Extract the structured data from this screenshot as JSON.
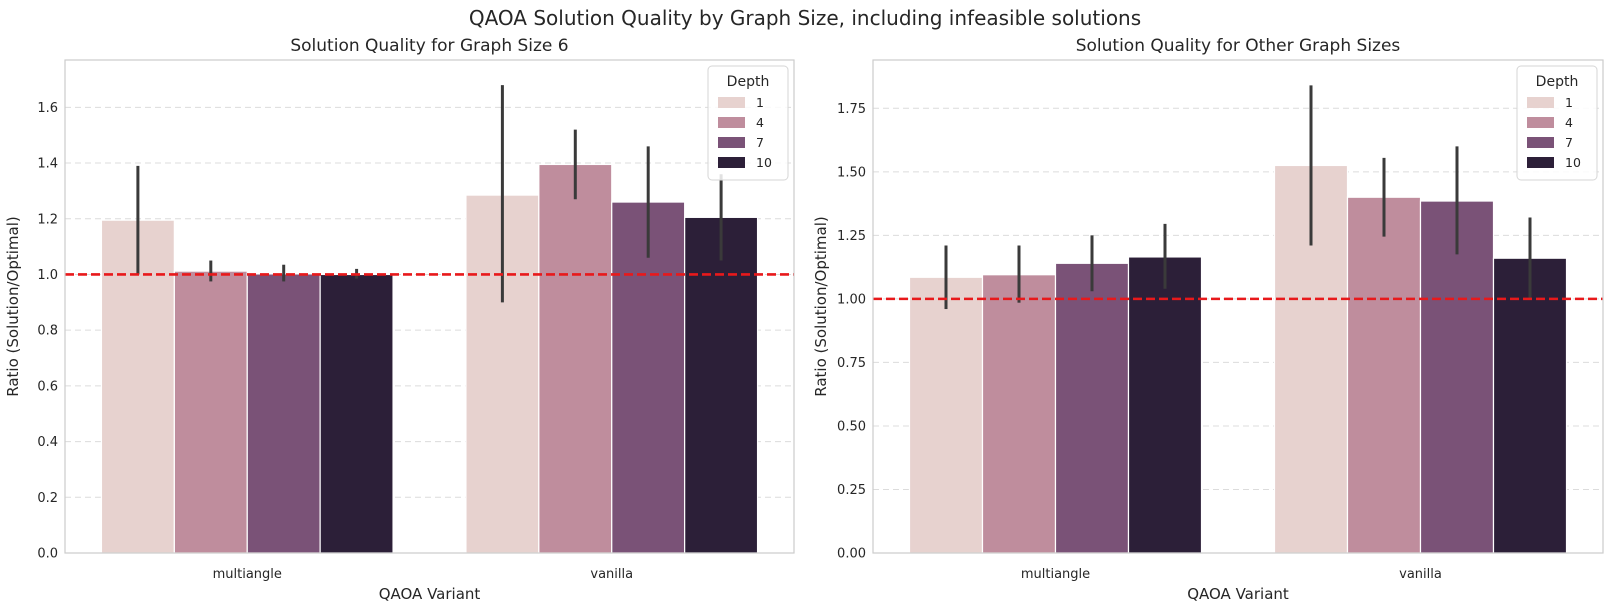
{
  "figure": {
    "suptitle": "QAOA Solution Quality by Graph Size, including infeasible solutions"
  },
  "chart_data": [
    {
      "type": "bar",
      "title": "Solution Quality for Graph Size 6",
      "xlabel": "QAOA Variant",
      "ylabel": "Ratio (Solution/Optimal)",
      "categories": [
        "multiangle",
        "vanilla"
      ],
      "ylim": [
        0,
        1.77
      ],
      "yticks": [
        0.0,
        0.2,
        0.4,
        0.6,
        0.8,
        1.0,
        1.2,
        1.4,
        1.6
      ],
      "ytick_labels": [
        "0.0",
        "0.2",
        "0.4",
        "0.6",
        "0.8",
        "1.0",
        "1.2",
        "1.4",
        "1.6"
      ],
      "reference_line": {
        "y": 1.0,
        "color": "#e8191b",
        "style": "dashed"
      },
      "grid": "y-dashed",
      "legend": {
        "title": "Depth",
        "position": "top-right"
      },
      "series": [
        {
          "name": "1",
          "color": "#e7d2cf",
          "values": [
            1.195,
            1.285
          ],
          "ci": [
            [
              1.0,
              1.39
            ],
            [
              0.9,
              1.68
            ]
          ]
        },
        {
          "name": "4",
          "color": "#bf8d9d",
          "values": [
            1.012,
            1.395
          ],
          "ci": [
            [
              0.975,
              1.05
            ],
            [
              1.27,
              1.52
            ]
          ]
        },
        {
          "name": "7",
          "color": "#7a5277",
          "values": [
            1.002,
            1.26
          ],
          "ci": [
            [
              0.975,
              1.035
            ],
            [
              1.06,
              1.46
            ]
          ]
        },
        {
          "name": "10",
          "color": "#2c1f38",
          "values": [
            1.0,
            1.205
          ],
          "ci": [
            [
              0.985,
              1.02
            ],
            [
              1.05,
              1.36
            ]
          ]
        }
      ]
    },
    {
      "type": "bar",
      "title": "Solution Quality for Other Graph Sizes",
      "xlabel": "QAOA Variant",
      "ylabel": "Ratio (Solution/Optimal)",
      "categories": [
        "multiangle",
        "vanilla"
      ],
      "ylim": [
        0,
        1.94
      ],
      "yticks": [
        0.0,
        0.25,
        0.5,
        0.75,
        1.0,
        1.25,
        1.5,
        1.75
      ],
      "ytick_labels": [
        "0.00",
        "0.25",
        "0.50",
        "0.75",
        "1.00",
        "1.25",
        "1.50",
        "1.75"
      ],
      "reference_line": {
        "y": 1.0,
        "color": "#e8191b",
        "style": "dashed"
      },
      "grid": "y-dashed",
      "legend": {
        "title": "Depth",
        "position": "top-right"
      },
      "series": [
        {
          "name": "1",
          "color": "#e7d2cf",
          "values": [
            1.085,
            1.525
          ],
          "ci": [
            [
              0.96,
              1.21
            ],
            [
              1.21,
              1.84
            ]
          ]
        },
        {
          "name": "4",
          "color": "#bf8d9d",
          "values": [
            1.095,
            1.4
          ],
          "ci": [
            [
              0.985,
              1.21
            ],
            [
              1.245,
              1.555
            ]
          ]
        },
        {
          "name": "7",
          "color": "#7a5277",
          "values": [
            1.14,
            1.385
          ],
          "ci": [
            [
              1.03,
              1.25
            ],
            [
              1.175,
              1.6
            ]
          ]
        },
        {
          "name": "10",
          "color": "#2c1f38",
          "values": [
            1.165,
            1.16
          ],
          "ci": [
            [
              1.04,
              1.295
            ],
            [
              1.0,
              1.32
            ]
          ]
        }
      ]
    }
  ]
}
